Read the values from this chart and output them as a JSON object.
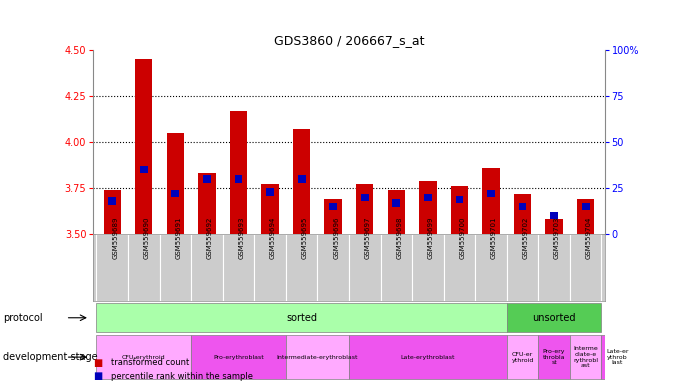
{
  "title": "GDS3860 / 206667_s_at",
  "samples": [
    "GSM559689",
    "GSM559690",
    "GSM559691",
    "GSM559692",
    "GSM559693",
    "GSM559694",
    "GSM559695",
    "GSM559696",
    "GSM559697",
    "GSM559698",
    "GSM559699",
    "GSM559700",
    "GSM559701",
    "GSM559702",
    "GSM559703",
    "GSM559704"
  ],
  "transformed_count": [
    3.74,
    4.45,
    4.05,
    3.83,
    4.17,
    3.77,
    4.07,
    3.69,
    3.77,
    3.74,
    3.79,
    3.76,
    3.86,
    3.72,
    3.58,
    3.69
  ],
  "percentile_rank": [
    18,
    35,
    22,
    30,
    30,
    23,
    30,
    15,
    20,
    17,
    20,
    19,
    22,
    15,
    10,
    15
  ],
  "ylim_left": [
    3.5,
    4.5
  ],
  "ylim_right": [
    0,
    100
  ],
  "yticks_left": [
    3.5,
    3.75,
    4.0,
    4.25,
    4.5
  ],
  "yticks_right": [
    0,
    25,
    50,
    75,
    100
  ],
  "bar_color_red": "#cc0000",
  "bar_color_blue": "#0000bb",
  "baseline": 3.5,
  "bg_xtick": "#cccccc",
  "bg_proto_sorted": "#aaffaa",
  "bg_proto_unsorted": "#55cc55",
  "bg_dev_light": "#ffaaff",
  "bg_dev_dark": "#ee55ee",
  "hgrid_dotted": [
    3.75,
    4.0,
    4.25
  ],
  "protocol_label": "protocol",
  "dev_stage_label": "development stage",
  "legend_red": "transformed count",
  "legend_blue": "percentile rank within the sample",
  "dev_stages": [
    {
      "label": "CFU-erythroid",
      "start": 0,
      "end": 3,
      "light": true
    },
    {
      "label": "Pro-erythroblast",
      "start": 3,
      "end": 6,
      "light": false
    },
    {
      "label": "Intermediate-erythroblast",
      "start": 6,
      "end": 8,
      "light": true
    },
    {
      "label": "Late-erythroblast",
      "start": 8,
      "end": 13,
      "light": false
    },
    {
      "label": "CFU-er\nythroid",
      "start": 13,
      "end": 14,
      "light": true
    },
    {
      "label": "Pro-ery\nthrobla\nst",
      "start": 14,
      "end": 15,
      "light": false
    },
    {
      "label": "Interme\ndiate-e\nrythrobl\nast",
      "start": 15,
      "end": 16,
      "light": true
    },
    {
      "label": "Late-er\nythrob\nlast",
      "start": 16,
      "end": 17,
      "light": false
    }
  ]
}
